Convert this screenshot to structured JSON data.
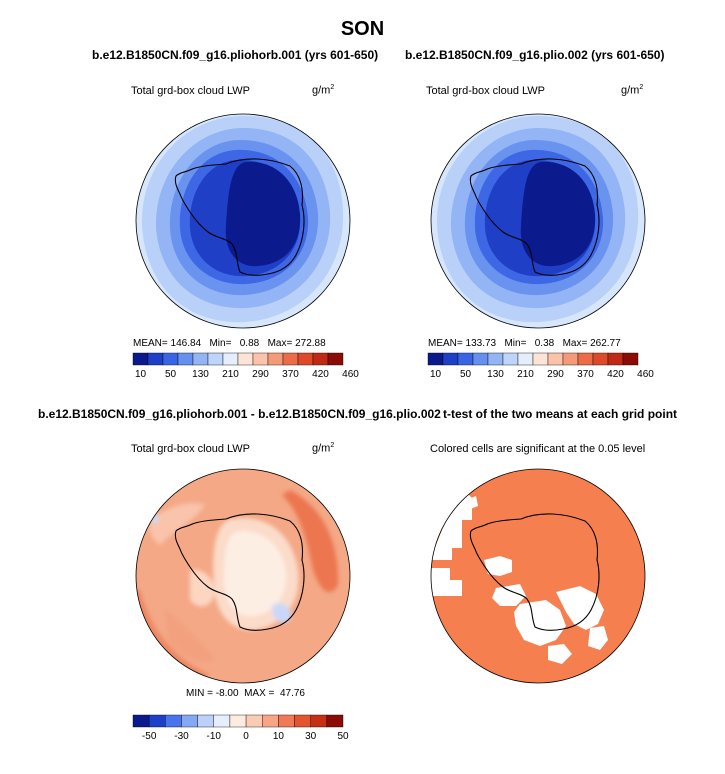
{
  "chart_data": {
    "type": "heatmap",
    "title": "SON",
    "panels": [
      {
        "title": "b.e12.B1850CN.f09_g16.pliohorb.001 (yrs 601-650)",
        "variable": "Total grd-box cloud LWP",
        "units": "g/m",
        "units_sup": "2",
        "stats": {
          "mean": "146.84",
          "min": "0.88",
          "max": "272.88"
        },
        "colorbar_labels": [
          "10",
          "50",
          "130",
          "210",
          "290",
          "370",
          "420",
          "460"
        ]
      },
      {
        "title": "b.e12.B1850CN.f09_g16.plio.002 (yrs 601-650)",
        "variable": "Total grd-box cloud LWP",
        "units": "g/m",
        "units_sup": "2",
        "stats": {
          "mean": "133.73",
          "min": "0.38",
          "max": "262.77"
        },
        "colorbar_labels": [
          "10",
          "50",
          "130",
          "210",
          "290",
          "370",
          "420",
          "460"
        ]
      },
      {
        "title": "b.e12.B1850CN.f09_g16.pliohorb.001 - b.e12.B1850CN.f09_g16.plio.002",
        "variable": "Total grd-box cloud LWP",
        "units": "g/m",
        "units_sup": "2",
        "stats": {
          "min": "-8.00",
          "max": "47.76"
        },
        "colorbar_labels": [
          "-50",
          "-30",
          "-10",
          "0",
          "10",
          "30",
          "50"
        ]
      },
      {
        "title": "t-test of the two means at each grid point",
        "variable": "Colored cells are significant at the 0.05 level"
      }
    ],
    "stat_labels": {
      "mean": "MEAN=",
      "min": "Min=",
      "max": "Max=",
      "min_caps": "MIN =",
      "max_caps": "MAX ="
    }
  },
  "colors": {
    "abs_scale": [
      "#0a1a8c",
      "#1e3fc8",
      "#3a64e6",
      "#6590f0",
      "#93b4f5",
      "#bed4fa",
      "#e4eefd",
      "#fde4d6",
      "#fac3aa",
      "#f59a78",
      "#ec6c48",
      "#dd4a2a",
      "#c02a14",
      "#8a0c04"
    ],
    "diff_scale": [
      "#0a1a8c",
      "#1e3fc8",
      "#4a74ec",
      "#84a8f3",
      "#bcd0fa",
      "#e6eefd",
      "#fdebe0",
      "#fbccb3",
      "#f7a584",
      "#f07a55",
      "#e3542f",
      "#c42f16",
      "#8a0c04"
    ],
    "significant": "#f57f4f"
  }
}
